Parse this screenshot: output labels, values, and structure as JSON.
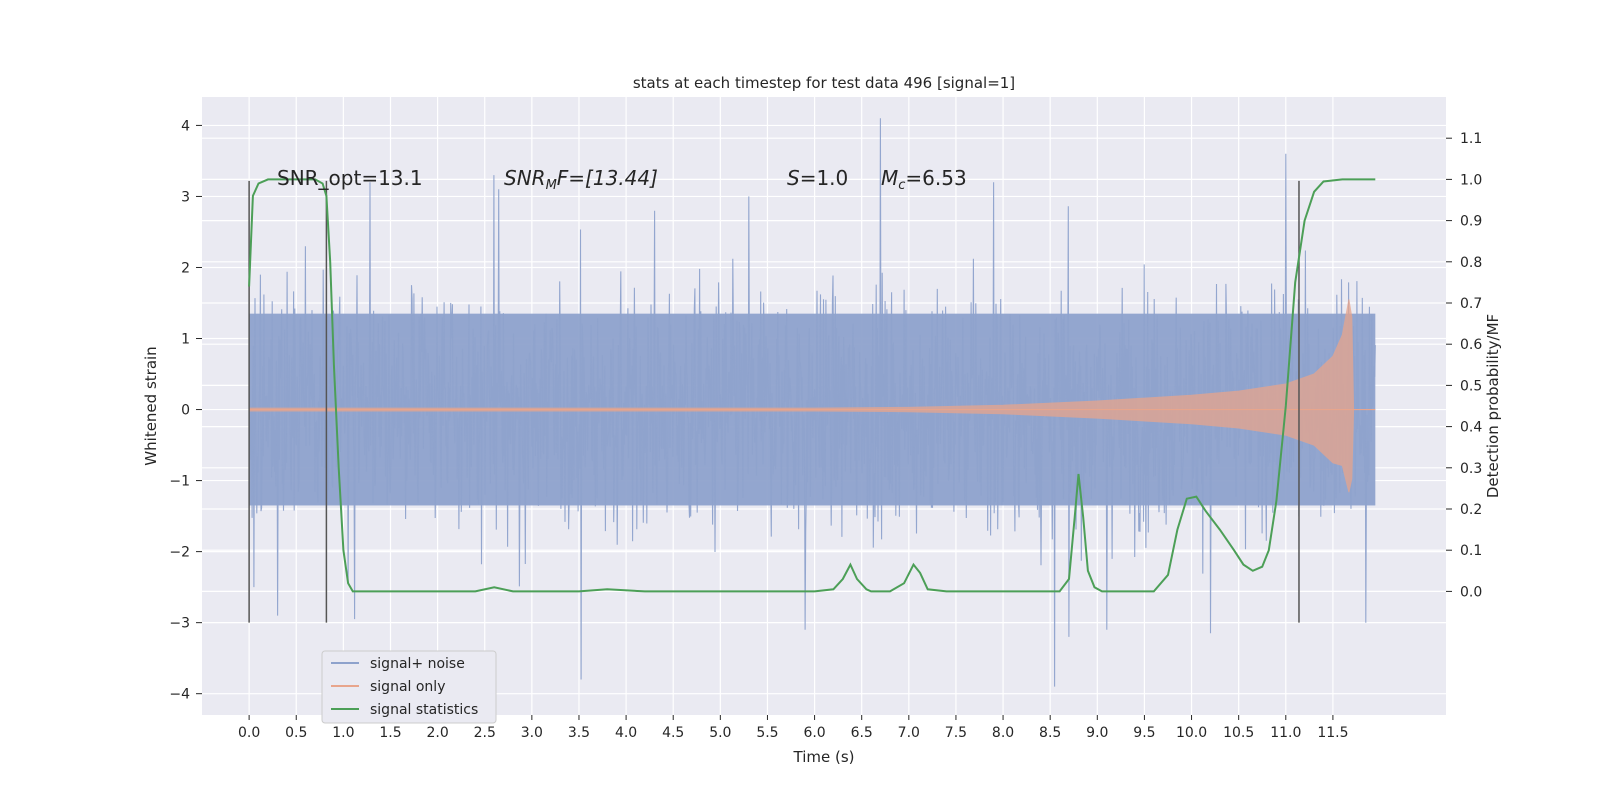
{
  "chart_data": {
    "type": "line",
    "title": "stats at each timestep for test data 496 [signal=1]",
    "xlabel": "Time (s)",
    "ylabel": "Whitened strain",
    "y2label": "Detection probability/MF",
    "xlim": [
      -0.5,
      12.7
    ],
    "ylim": [
      -4.3,
      4.4
    ],
    "y2lim": [
      -0.3,
      1.2
    ],
    "xticks": [
      0.0,
      0.5,
      1.0,
      1.5,
      2.0,
      2.5,
      3.0,
      3.5,
      4.0,
      4.5,
      5.0,
      5.5,
      6.0,
      6.5,
      7.0,
      7.5,
      8.0,
      8.5,
      9.0,
      9.5,
      10.0,
      10.5,
      11.0,
      11.5
    ],
    "xtick_labels": [
      "0.0",
      "0.5",
      "1.0",
      "1.5",
      "2.0",
      "2.5",
      "3.0",
      "3.5",
      "4.0",
      "4.5",
      "5.0",
      "5.5",
      "6.0",
      "6.5",
      "7.0",
      "7.5",
      "8.0",
      "8.5",
      "9.0",
      "9.5",
      "10.0",
      "10.5",
      "11.0",
      "11.5"
    ],
    "yticks": [
      -4,
      -3,
      -2,
      -1,
      0,
      1,
      2,
      3,
      4
    ],
    "ytick_labels": [
      "−4",
      "−3",
      "−2",
      "−1",
      "0",
      "1",
      "2",
      "3",
      "4"
    ],
    "y2ticks": [
      0.0,
      0.1,
      0.2,
      0.3,
      0.4,
      0.5,
      0.6,
      0.7,
      0.8,
      0.9,
      1.0,
      1.1
    ],
    "y2tick_labels": [
      "0.0",
      "0.1",
      "0.2",
      "0.3",
      "0.4",
      "0.5",
      "0.6",
      "0.7",
      "0.8",
      "0.9",
      "1.0",
      "1.1"
    ],
    "grid": true,
    "legend_position": "lower-left",
    "annotations": {
      "snr_opt": "SNR_opt=13.1",
      "snr_mf_sym": "SNR",
      "snr_mf_sub": "M",
      "snr_mf_rest": "F=[13.44]",
      "s_sym": "S",
      "s_rest": "=1.0",
      "mc_sym": "M",
      "mc_sub": "c",
      "mc_rest": "=6.53"
    },
    "vertical_markers": [
      0.0,
      0.82,
      11.14
    ],
    "series": [
      {
        "name": "signal+ noise",
        "color": "#8ea2cc",
        "axis": "left",
        "style": "dense noise trace",
        "t_range": [
          0.0,
          11.95
        ],
        "core_band": [
          -1.35,
          1.35
        ],
        "peaks": [
          {
            "x": 0.05,
            "y": -2.5
          },
          {
            "x": 0.12,
            "y": 1.9
          },
          {
            "x": 0.3,
            "y": -2.9
          },
          {
            "x": 0.6,
            "y": 2.3
          },
          {
            "x": 1.12,
            "y": -2.95
          },
          {
            "x": 1.28,
            "y": 3.2
          },
          {
            "x": 2.6,
            "y": 3.3
          },
          {
            "x": 2.65,
            "y": 3.1
          },
          {
            "x": 3.52,
            "y": -3.8
          },
          {
            "x": 4.3,
            "y": 2.8
          },
          {
            "x": 5.3,
            "y": 3.0
          },
          {
            "x": 5.9,
            "y": -3.1
          },
          {
            "x": 6.7,
            "y": 4.1
          },
          {
            "x": 7.9,
            "y": 3.2
          },
          {
            "x": 8.55,
            "y": -3.9
          },
          {
            "x": 8.7,
            "y": -3.2
          },
          {
            "x": 9.1,
            "y": -3.1
          },
          {
            "x": 10.2,
            "y": -3.15
          },
          {
            "x": 11.0,
            "y": 3.6
          },
          {
            "x": 11.85,
            "y": -3.0
          }
        ]
      },
      {
        "name": "signal only",
        "color": "#e8a58c",
        "axis": "left",
        "style": "chirp envelope",
        "envelope": [
          {
            "x": 0.0,
            "y": 0.02
          },
          {
            "x": 6.0,
            "y": 0.02
          },
          {
            "x": 7.0,
            "y": 0.03
          },
          {
            "x": 8.0,
            "y": 0.06
          },
          {
            "x": 9.0,
            "y": 0.12
          },
          {
            "x": 10.0,
            "y": 0.2
          },
          {
            "x": 10.5,
            "y": 0.26
          },
          {
            "x": 11.0,
            "y": 0.36
          },
          {
            "x": 11.3,
            "y": 0.5
          },
          {
            "x": 11.5,
            "y": 0.75
          },
          {
            "x": 11.6,
            "y": 1.05
          },
          {
            "x": 11.67,
            "y": 1.55
          },
          {
            "x": 11.7,
            "y": 1.3
          },
          {
            "x": 11.72,
            "y": 0.0
          }
        ]
      },
      {
        "name": "signal statistics",
        "color": "#4c9f57",
        "axis": "right",
        "x": [
          0.0,
          0.04,
          0.1,
          0.2,
          0.4,
          0.6,
          0.7,
          0.78,
          0.82,
          0.86,
          0.9,
          0.95,
          1.0,
          1.05,
          1.1,
          1.3,
          1.6,
          2.0,
          2.4,
          2.6,
          2.8,
          3.0,
          3.5,
          3.8,
          4.2,
          5.0,
          5.6,
          6.0,
          6.2,
          6.3,
          6.38,
          6.45,
          6.55,
          6.6,
          6.8,
          6.95,
          7.05,
          7.12,
          7.2,
          7.4,
          7.9,
          8.6,
          8.7,
          8.76,
          8.8,
          8.85,
          8.9,
          8.97,
          9.05,
          9.2,
          9.6,
          9.75,
          9.85,
          9.95,
          10.05,
          10.15,
          10.3,
          10.45,
          10.55,
          10.65,
          10.75,
          10.82,
          10.9,
          11.0,
          11.1,
          11.2,
          11.3,
          11.4,
          11.6,
          11.95
        ],
        "y": [
          0.74,
          0.96,
          0.99,
          1.0,
          1.0,
          1.0,
          1.0,
          0.99,
          0.96,
          0.8,
          0.55,
          0.3,
          0.1,
          0.02,
          0.0,
          0.0,
          0.0,
          0.0,
          0.0,
          0.01,
          0.0,
          0.0,
          0.0,
          0.005,
          0.0,
          0.0,
          0.0,
          0.0,
          0.005,
          0.03,
          0.065,
          0.03,
          0.005,
          0.0,
          0.0,
          0.02,
          0.065,
          0.045,
          0.005,
          0.0,
          0.0,
          0.0,
          0.03,
          0.18,
          0.285,
          0.18,
          0.05,
          0.01,
          0.0,
          0.0,
          0.0,
          0.04,
          0.15,
          0.225,
          0.23,
          0.195,
          0.15,
          0.1,
          0.065,
          0.05,
          0.06,
          0.1,
          0.22,
          0.45,
          0.75,
          0.9,
          0.97,
          0.995,
          1.0,
          1.0
        ]
      }
    ]
  }
}
